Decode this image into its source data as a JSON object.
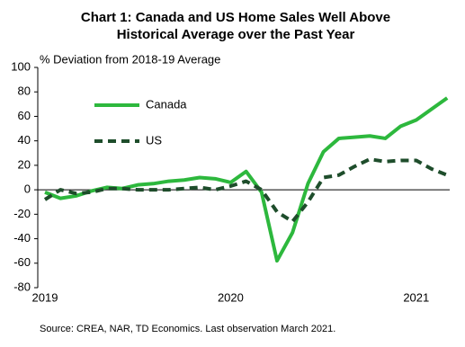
{
  "chart_data": {
    "type": "line",
    "title": [
      "Chart 1: Canada and US Home Sales Well Above",
      "Historical Average over the Past Year"
    ],
    "subtitle": "% Deviation from 2018-19 Average",
    "source": "Source: CREA, NAR, TD Economics. Last observation March 2021.",
    "categories": [
      "2019",
      null,
      null,
      null,
      null,
      null,
      null,
      null,
      null,
      null,
      null,
      null,
      "2020",
      null,
      null,
      null,
      null,
      null,
      null,
      null,
      null,
      null,
      null,
      null,
      "2021",
      null,
      null
    ],
    "series": [
      {
        "name": "Canada",
        "color": "#2db83d",
        "dash": false,
        "values": [
          -2,
          -7,
          -5,
          -1,
          2,
          1,
          4,
          5,
          7,
          8,
          10,
          9,
          6,
          15,
          -2,
          -58,
          -35,
          5,
          31,
          42,
          43,
          44,
          42,
          52,
          57,
          66,
          75
        ]
      },
      {
        "name": "US",
        "color": "#1e4d2b",
        "dash": true,
        "values": [
          -8,
          0,
          -3,
          -2,
          1,
          1,
          0,
          0,
          0,
          1,
          2,
          0,
          3,
          7,
          0,
          -18,
          -26,
          -10,
          10,
          12,
          19,
          25,
          23,
          24,
          24,
          17,
          12
        ]
      }
    ],
    "ylim": [
      -80,
      100
    ],
    "yticks": [
      -80,
      -60,
      -40,
      -20,
      0,
      20,
      40,
      60,
      80,
      100
    ],
    "grid": false,
    "legend": "upper left"
  }
}
